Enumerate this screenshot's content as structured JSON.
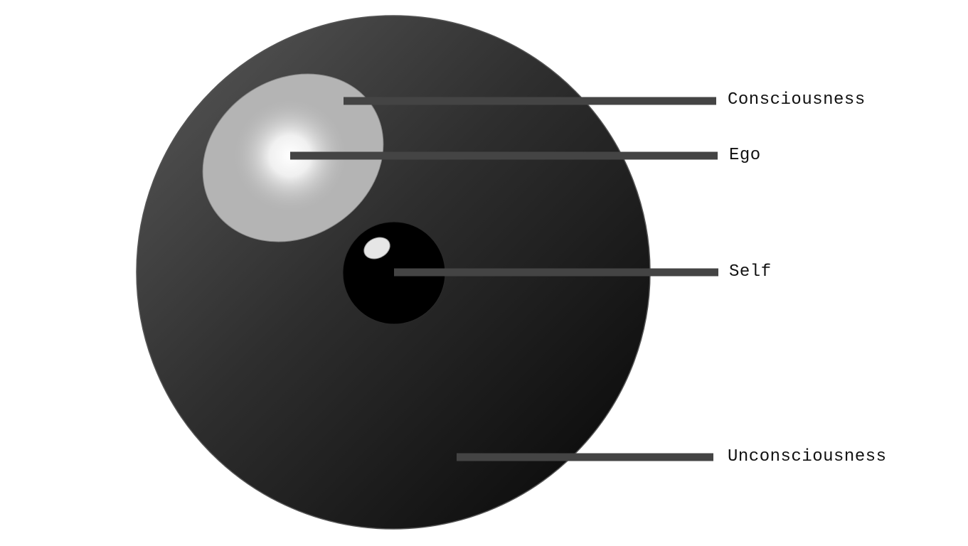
{
  "labels": {
    "consciousness": "Consciousness",
    "ego": "Ego",
    "self": "Self",
    "unconsciousness": "Unconsciousness"
  },
  "colors": {
    "psyche_light": "#555555",
    "psyche_dark": "#0a0a0a",
    "consciousness_fill": "#b4b4b4",
    "ego_center": "#ffffff",
    "self_fill": "#000000",
    "leader_line": "#444444",
    "label_text": "#111111"
  }
}
